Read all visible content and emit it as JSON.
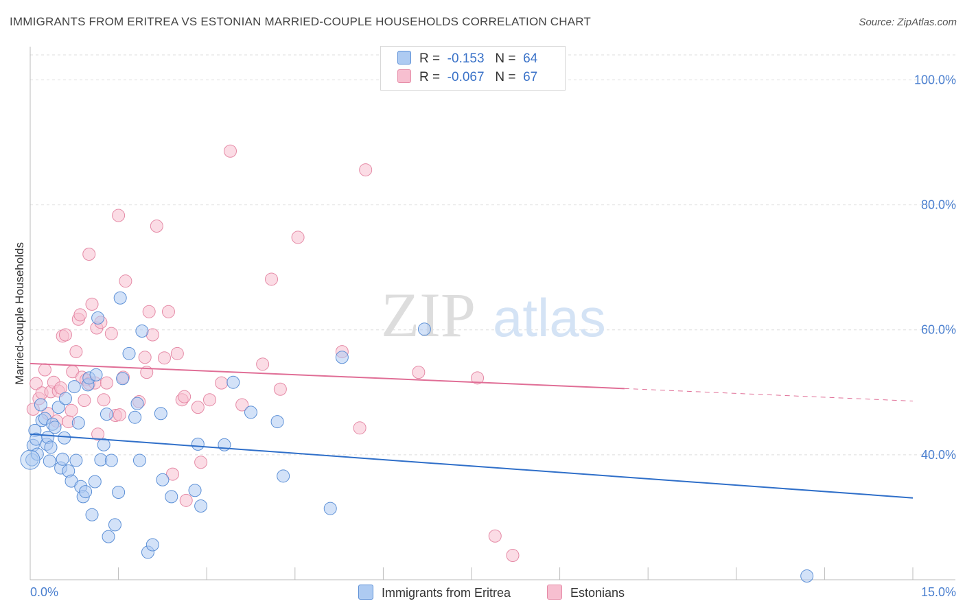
{
  "title": "IMMIGRANTS FROM ERITREA VS ESTONIAN MARRIED-COUPLE HOUSEHOLDS CORRELATION CHART",
  "source": "Source: ZipAtlas.com",
  "watermark": {
    "zip": "ZIP",
    "atlas": "atlas"
  },
  "legend_top": [
    {
      "r_label": "R =",
      "r_value": "-0.153",
      "n_label": "N =",
      "n_value": "64"
    },
    {
      "r_label": "R =",
      "r_value": "-0.067",
      "n_label": "N =",
      "n_value": "67"
    }
  ],
  "colors": {
    "series1_fill": "#aecbf2",
    "series1_stroke": "#5b8fd6",
    "series1_line": "#2f6fc9",
    "series2_fill": "#f7bfd0",
    "series2_stroke": "#e58aa6",
    "series2_line": "#e06e96",
    "tick": "#4a7fcf",
    "grid": "#dddddd"
  },
  "chart_data": {
    "type": "scatter",
    "title": "IMMIGRANTS FROM ERITREA VS ESTONIAN MARRIED-COUPLE HOUSEHOLDS CORRELATION CHART",
    "xlabel": "",
    "ylabel": "Married-couple Households",
    "xlim": [
      0,
      15
    ],
    "ylim": [
      20,
      104
    ],
    "x_tick_labels": [
      "0.0%",
      "15.0%"
    ],
    "y_ticks": [
      40,
      60,
      80,
      100
    ],
    "y_tick_labels": [
      "40.0%",
      "60.0%",
      "80.0%",
      "100.0%"
    ],
    "grid": true,
    "legend_position": "top-center",
    "series": [
      {
        "name": "Immigrants from Eritrea",
        "trend": {
          "x": [
            0,
            15
          ],
          "y": [
            43.3,
            33.1
          ]
        },
        "points": [
          [
            0.03,
            39.2
          ],
          [
            0.05,
            41.5
          ],
          [
            0.08,
            43.9
          ],
          [
            0.1,
            42.5
          ],
          [
            0.12,
            40.1
          ],
          [
            0.18,
            48.0
          ],
          [
            0.2,
            45.5
          ],
          [
            0.25,
            45.8
          ],
          [
            0.28,
            41.7
          ],
          [
            0.3,
            42.8
          ],
          [
            0.33,
            39.0
          ],
          [
            0.38,
            44.9
          ],
          [
            0.42,
            44.4
          ],
          [
            0.48,
            47.6
          ],
          [
            0.52,
            37.9
          ],
          [
            0.55,
            39.3
          ],
          [
            0.58,
            42.7
          ],
          [
            0.6,
            49.0
          ],
          [
            0.65,
            37.4
          ],
          [
            0.7,
            35.8
          ],
          [
            0.75,
            50.9
          ],
          [
            0.78,
            39.1
          ],
          [
            0.82,
            45.1
          ],
          [
            0.86,
            34.9
          ],
          [
            0.9,
            33.3
          ],
          [
            0.94,
            34.1
          ],
          [
            0.98,
            51.2
          ],
          [
            1.0,
            52.3
          ],
          [
            1.05,
            30.4
          ],
          [
            1.1,
            35.7
          ],
          [
            1.12,
            52.8
          ],
          [
            1.15,
            61.9
          ],
          [
            1.2,
            39.2
          ],
          [
            1.25,
            41.6
          ],
          [
            1.3,
            46.5
          ],
          [
            1.33,
            26.9
          ],
          [
            1.38,
            39.1
          ],
          [
            1.44,
            28.8
          ],
          [
            1.5,
            34.0
          ],
          [
            1.53,
            65.1
          ],
          [
            1.57,
            52.2
          ],
          [
            1.68,
            56.2
          ],
          [
            1.78,
            46.0
          ],
          [
            1.82,
            48.2
          ],
          [
            1.86,
            39.1
          ],
          [
            1.9,
            59.8
          ],
          [
            2.0,
            24.4
          ],
          [
            2.08,
            25.6
          ],
          [
            2.22,
            46.6
          ],
          [
            2.25,
            36.0
          ],
          [
            2.4,
            33.3
          ],
          [
            2.8,
            34.3
          ],
          [
            2.85,
            41.7
          ],
          [
            2.9,
            31.8
          ],
          [
            3.3,
            41.6
          ],
          [
            3.45,
            51.6
          ],
          [
            3.75,
            46.8
          ],
          [
            4.2,
            45.3
          ],
          [
            4.3,
            36.6
          ],
          [
            5.1,
            31.4
          ],
          [
            5.3,
            55.6
          ],
          [
            6.7,
            60.1
          ],
          [
            13.2,
            20.6
          ],
          [
            0.35,
            41.2
          ]
        ]
      },
      {
        "name": "Estonians",
        "trend": {
          "x": [
            0,
            10.1
          ],
          "y": [
            54.6,
            50.6
          ]
        },
        "trend_dashed": {
          "x": [
            10.1,
            15
          ],
          "y": [
            50.6,
            48.6
          ]
        },
        "points": [
          [
            0.05,
            47.3
          ],
          [
            0.1,
            51.4
          ],
          [
            0.15,
            49.0
          ],
          [
            0.2,
            49.9
          ],
          [
            0.25,
            53.6
          ],
          [
            0.3,
            46.6
          ],
          [
            0.35,
            50.1
          ],
          [
            0.4,
            51.6
          ],
          [
            0.45,
            45.4
          ],
          [
            0.48,
            50.2
          ],
          [
            0.52,
            50.7
          ],
          [
            0.55,
            59.0
          ],
          [
            0.6,
            59.2
          ],
          [
            0.65,
            45.3
          ],
          [
            0.7,
            47.1
          ],
          [
            0.72,
            53.3
          ],
          [
            0.78,
            56.5
          ],
          [
            0.82,
            61.7
          ],
          [
            0.85,
            62.4
          ],
          [
            0.88,
            52.4
          ],
          [
            0.92,
            48.7
          ],
          [
            0.95,
            52.0
          ],
          [
            1.0,
            51.4
          ],
          [
            1.0,
            72.1
          ],
          [
            1.05,
            64.1
          ],
          [
            1.1,
            51.5
          ],
          [
            1.13,
            60.3
          ],
          [
            1.15,
            43.3
          ],
          [
            1.2,
            61.2
          ],
          [
            1.25,
            48.8
          ],
          [
            1.3,
            51.5
          ],
          [
            1.38,
            59.4
          ],
          [
            1.45,
            46.3
          ],
          [
            1.5,
            78.3
          ],
          [
            1.52,
            46.4
          ],
          [
            1.58,
            52.4
          ],
          [
            1.62,
            67.8
          ],
          [
            1.85,
            48.5
          ],
          [
            1.95,
            55.6
          ],
          [
            1.98,
            53.2
          ],
          [
            2.02,
            62.9
          ],
          [
            2.08,
            59.2
          ],
          [
            2.15,
            76.6
          ],
          [
            2.28,
            55.5
          ],
          [
            2.35,
            62.9
          ],
          [
            2.42,
            36.9
          ],
          [
            2.5,
            56.2
          ],
          [
            2.58,
            48.8
          ],
          [
            2.62,
            49.3
          ],
          [
            2.65,
            32.7
          ],
          [
            2.85,
            47.6
          ],
          [
            2.9,
            38.8
          ],
          [
            3.05,
            48.8
          ],
          [
            3.25,
            51.5
          ],
          [
            3.4,
            88.6
          ],
          [
            3.6,
            48.0
          ],
          [
            3.95,
            54.5
          ],
          [
            4.1,
            68.1
          ],
          [
            4.25,
            50.5
          ],
          [
            4.55,
            74.8
          ],
          [
            5.3,
            56.5
          ],
          [
            5.6,
            44.3
          ],
          [
            5.7,
            85.6
          ],
          [
            6.6,
            53.2
          ],
          [
            7.6,
            52.3
          ],
          [
            7.9,
            27.0
          ],
          [
            8.2,
            23.9
          ]
        ]
      }
    ]
  },
  "legend_bottom": [
    "Immigrants from Eritrea",
    "Estonians"
  ]
}
